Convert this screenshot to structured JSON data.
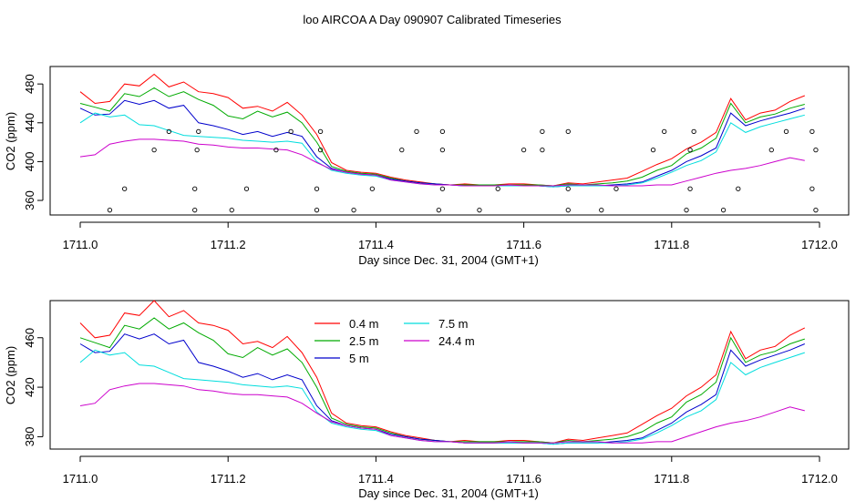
{
  "title": "loo AIRCOA A  Day 090907  Calibrated Timeseries",
  "chart_data": [
    {
      "type": "scatter",
      "panel": "top",
      "ylabel": "CO2 (ppm)",
      "xlabel": "Day since Dec. 31, 2004 (GMT+1)",
      "xlim": [
        1710.98,
        1712.04
      ],
      "ylim": [
        345,
        498
      ],
      "xticks": [
        "1711.0",
        "1711.2",
        "1711.4",
        "1711.6",
        "1711.8",
        "1712.0"
      ],
      "yticks": [
        "360",
        "400",
        "440",
        "480"
      ],
      "grid": false,
      "line_series": [
        "s04",
        "s25",
        "s5",
        "s75",
        "s244"
      ],
      "point_series": {
        "name": "",
        "x": [
          1711.04,
          1711.06,
          1711.1,
          1711.12,
          1711.155,
          1711.155,
          1711.158,
          1711.16,
          1711.205,
          1711.225,
          1711.265,
          1711.285,
          1711.32,
          1711.32,
          1711.325,
          1711.325,
          1711.37,
          1711.395,
          1711.435,
          1711.455,
          1711.485,
          1711.49,
          1711.49,
          1711.49,
          1711.54,
          1711.565,
          1711.6,
          1711.625,
          1711.625,
          1711.66,
          1711.66,
          1711.66,
          1711.705,
          1711.725,
          1711.775,
          1711.79,
          1711.82,
          1711.825,
          1711.825,
          1711.83,
          1711.87,
          1711.89,
          1711.935,
          1711.955,
          1711.99,
          1711.99,
          1711.995,
          1711.995
        ],
        "y": [
          350,
          372,
          412,
          431,
          350,
          372,
          412,
          431,
          350,
          372,
          412,
          431,
          350,
          372,
          412,
          431,
          350,
          372,
          412,
          431,
          350,
          372,
          412,
          431,
          350,
          372,
          412,
          431,
          412,
          350,
          372,
          431,
          350,
          372,
          412,
          431,
          350,
          372,
          412,
          431,
          350,
          372,
          412,
          431,
          372,
          431,
          350,
          412
        ]
      }
    },
    {
      "type": "line",
      "panel": "bottom",
      "ylabel": "CO2 (ppm)",
      "xlabel": "Day since Dec. 31, 2004 (GMT+1)",
      "xlim": [
        1710.98,
        1712.04
      ],
      "ylim": [
        370,
        490
      ],
      "xticks": [
        "1711.0",
        "1711.2",
        "1711.4",
        "1711.6",
        "1711.8",
        "1712.0"
      ],
      "yticks": [
        "380",
        "420",
        "460"
      ],
      "grid": false,
      "legend": [
        {
          "name": "0.4 m",
          "key": "s04"
        },
        {
          "name": "7.5 m",
          "key": "s75"
        },
        {
          "name": "2.5 m",
          "key": "s25"
        },
        {
          "name": "24.4 m",
          "key": "s244"
        },
        {
          "name": "5 m",
          "key": "s5"
        }
      ]
    }
  ],
  "series_x": [
    1711.0,
    1711.02,
    1711.04,
    1711.06,
    1711.08,
    1711.1,
    1711.12,
    1711.14,
    1711.16,
    1711.18,
    1711.2,
    1711.22,
    1711.24,
    1711.26,
    1711.28,
    1711.3,
    1711.32,
    1711.34,
    1711.36,
    1711.38,
    1711.4,
    1711.42,
    1711.44,
    1711.46,
    1711.48,
    1711.5,
    1711.52,
    1711.54,
    1711.56,
    1711.58,
    1711.6,
    1711.62,
    1711.64,
    1711.66,
    1711.68,
    1711.7,
    1711.72,
    1711.74,
    1711.76,
    1711.78,
    1711.8,
    1711.82,
    1711.84,
    1711.86,
    1711.88,
    1711.9,
    1711.92,
    1711.94,
    1711.96,
    1711.98
  ],
  "series": [
    {
      "key": "s04",
      "name": "0.4 m",
      "color": "#ff0000",
      "values": [
        472,
        460,
        462,
        480,
        478,
        490,
        477,
        482,
        472,
        470,
        466,
        455,
        457,
        452,
        461,
        448,
        428,
        399,
        391,
        389,
        388,
        384,
        381,
        379,
        377,
        376,
        377,
        376,
        376,
        377,
        377,
        376,
        375,
        378,
        377,
        379,
        381,
        383,
        390,
        397,
        403,
        413,
        420,
        430,
        465,
        443,
        450,
        453,
        462,
        468
      ]
    },
    {
      "key": "s25",
      "name": "2.5 m",
      "color": "#00aa00",
      "values": [
        460,
        456,
        452,
        470,
        467,
        476,
        467,
        472,
        464,
        458,
        447,
        444,
        452,
        446,
        451,
        440,
        420,
        395,
        390,
        388,
        387,
        383,
        380,
        378,
        377,
        376,
        376,
        376,
        376,
        376,
        376,
        376,
        375,
        377,
        376,
        377,
        378,
        380,
        384,
        391,
        396,
        408,
        414,
        424,
        460,
        440,
        446,
        449,
        455,
        459
      ]
    },
    {
      "key": "s5",
      "name": "5 m",
      "color": "#0000cc",
      "values": [
        455,
        448,
        449,
        463,
        459,
        463,
        455,
        458,
        440,
        437,
        433,
        428,
        431,
        426,
        430,
        426,
        405,
        393,
        389,
        387,
        386,
        382,
        380,
        378,
        377,
        376,
        375,
        375,
        375,
        375,
        375,
        375,
        374,
        375,
        375,
        375,
        376,
        377,
        379,
        385,
        391,
        400,
        406,
        414,
        450,
        437,
        442,
        446,
        450,
        455
      ]
    },
    {
      "key": "s75",
      "name": "7.5 m",
      "color": "#00dddd",
      "values": [
        440,
        450,
        446,
        448,
        438,
        437,
        432,
        427,
        426,
        425,
        424,
        422,
        421,
        420,
        421,
        419,
        400,
        391,
        388,
        386,
        385,
        381,
        379,
        377,
        376,
        376,
        375,
        375,
        375,
        375,
        375,
        375,
        374,
        375,
        375,
        375,
        375,
        376,
        378,
        383,
        389,
        396,
        401,
        410,
        440,
        430,
        436,
        440,
        444,
        448
      ]
    },
    {
      "key": "s244",
      "name": "24.4 m",
      "color": "#cc00cc",
      "values": [
        405,
        407,
        418,
        421,
        423,
        423,
        422,
        421,
        418,
        417,
        415,
        414,
        414,
        413,
        412,
        407,
        399,
        392,
        389,
        387,
        386,
        381,
        379,
        377,
        376,
        376,
        375,
        375,
        375,
        376,
        375,
        375,
        375,
        376,
        376,
        376,
        375,
        375,
        375,
        376,
        376,
        380,
        384,
        388,
        391,
        393,
        396,
        400,
        404,
        401
      ]
    }
  ]
}
